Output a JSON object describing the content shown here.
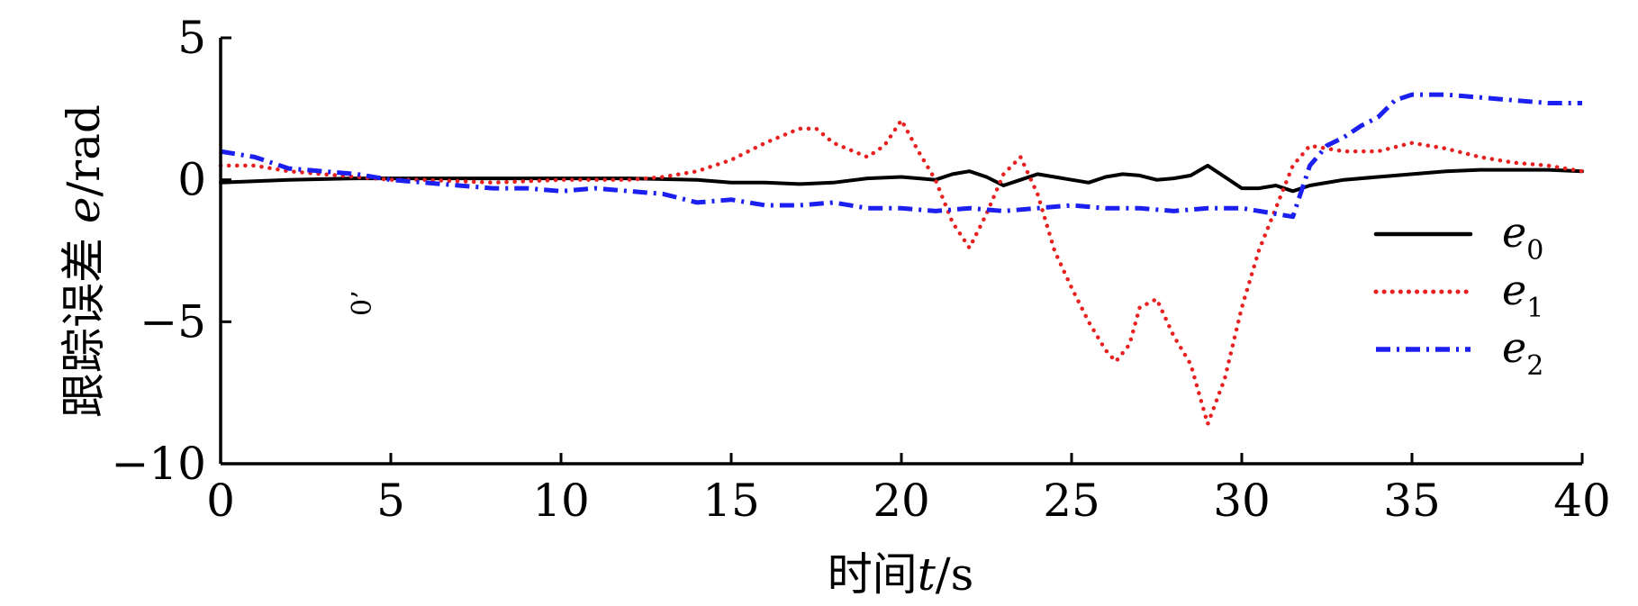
{
  "chart_data": {
    "type": "line",
    "title": "",
    "xlabel": {
      "prefix": "时间",
      "var": "t",
      "unit": "/s"
    },
    "ylabel": {
      "prefix": "跟踪误差 ",
      "var": "e",
      "unit": "/rad"
    },
    "xlim": [
      0,
      40
    ],
    "ylim": [
      -10,
      5
    ],
    "xticks": [
      0,
      5,
      10,
      15,
      20,
      25,
      30,
      35,
      40
    ],
    "yticks": [
      5,
      0,
      -5,
      -10
    ],
    "xtick_labels": [
      "0",
      "5",
      "10",
      "15",
      "20",
      "25",
      "30",
      "35",
      "40"
    ],
    "ytick_labels": [
      "5",
      "0",
      "−5",
      "−10"
    ],
    "grid": false,
    "legend_position": "right",
    "stray_mark": "0’",
    "series": [
      {
        "name": "e",
        "sub": "0",
        "style": "solid",
        "color": "#000000",
        "x": [
          0,
          2,
          4,
          6,
          8,
          10,
          12,
          14,
          15,
          16,
          17,
          18,
          19,
          20,
          21,
          21.5,
          22,
          22.5,
          23,
          23.5,
          24,
          24.5,
          25,
          25.5,
          26,
          26.5,
          27,
          27.5,
          28,
          28.5,
          29,
          29.5,
          30,
          30.5,
          31,
          31.5,
          32,
          33,
          34,
          35,
          36,
          37,
          38,
          39,
          40
        ],
        "y": [
          -0.1,
          0.0,
          0.05,
          0.05,
          0.05,
          0.05,
          0.05,
          0.0,
          -0.1,
          -0.1,
          -0.15,
          -0.1,
          0.05,
          0.1,
          0.0,
          0.2,
          0.3,
          0.1,
          -0.2,
          0.0,
          0.2,
          0.1,
          0.0,
          -0.1,
          0.1,
          0.2,
          0.15,
          0.0,
          0.05,
          0.15,
          0.5,
          0.1,
          -0.3,
          -0.3,
          -0.2,
          -0.4,
          -0.2,
          0.0,
          0.1,
          0.2,
          0.3,
          0.35,
          0.35,
          0.35,
          0.3
        ]
      },
      {
        "name": "e",
        "sub": "1",
        "style": "dotted",
        "color": "#e8201f",
        "x": [
          0,
          1,
          2,
          3,
          4,
          5,
          6,
          8,
          10,
          12,
          13,
          14,
          15,
          16,
          17,
          17.5,
          18,
          19,
          19.5,
          20,
          20.5,
          21,
          21.5,
          22,
          22.5,
          23,
          23.5,
          24,
          24.5,
          25,
          25.5,
          26,
          26.3,
          26.7,
          27,
          27.5,
          28,
          28.5,
          29,
          29.5,
          30,
          30.5,
          31,
          31.5,
          32,
          33,
          34,
          35,
          36,
          37,
          38,
          39,
          40
        ],
        "y": [
          0.5,
          0.5,
          0.3,
          0.2,
          0.1,
          0.0,
          0.0,
          -0.1,
          0.0,
          0.0,
          0.1,
          0.3,
          0.7,
          1.3,
          1.8,
          1.8,
          1.3,
          0.8,
          1.2,
          2.1,
          1.0,
          0.0,
          -1.5,
          -2.4,
          -1.2,
          0.2,
          0.8,
          -0.5,
          -2.5,
          -3.8,
          -5.0,
          -6.0,
          -6.4,
          -5.8,
          -4.5,
          -4.2,
          -5.5,
          -6.5,
          -8.6,
          -7.0,
          -4.5,
          -2.5,
          -1.0,
          0.5,
          1.2,
          1.0,
          1.0,
          1.3,
          1.1,
          0.8,
          0.6,
          0.5,
          0.3
        ]
      },
      {
        "name": "e",
        "sub": "2",
        "style": "dashdot",
        "color": "#1b1ff0",
        "x": [
          0,
          0.5,
          1,
          1.5,
          2,
          3,
          4,
          5,
          6,
          7,
          8,
          9,
          10,
          11,
          12,
          13,
          14,
          15,
          16,
          17,
          18,
          19,
          20,
          21,
          22,
          23,
          24,
          25,
          26,
          27,
          28,
          29,
          30,
          31,
          31.5,
          32,
          32.5,
          33,
          33.5,
          34,
          34.5,
          35,
          36,
          37,
          38,
          39,
          40
        ],
        "y": [
          1.0,
          0.9,
          0.8,
          0.6,
          0.4,
          0.3,
          0.2,
          0.0,
          -0.1,
          -0.2,
          -0.3,
          -0.3,
          -0.4,
          -0.3,
          -0.4,
          -0.5,
          -0.8,
          -0.7,
          -0.9,
          -0.9,
          -0.8,
          -1.0,
          -1.0,
          -1.1,
          -1.0,
          -1.1,
          -1.0,
          -0.9,
          -1.0,
          -1.0,
          -1.1,
          -1.0,
          -1.0,
          -1.2,
          -1.3,
          0.5,
          1.2,
          1.5,
          1.9,
          2.2,
          2.8,
          3.0,
          3.0,
          2.9,
          2.8,
          2.7,
          2.7
        ]
      }
    ]
  }
}
